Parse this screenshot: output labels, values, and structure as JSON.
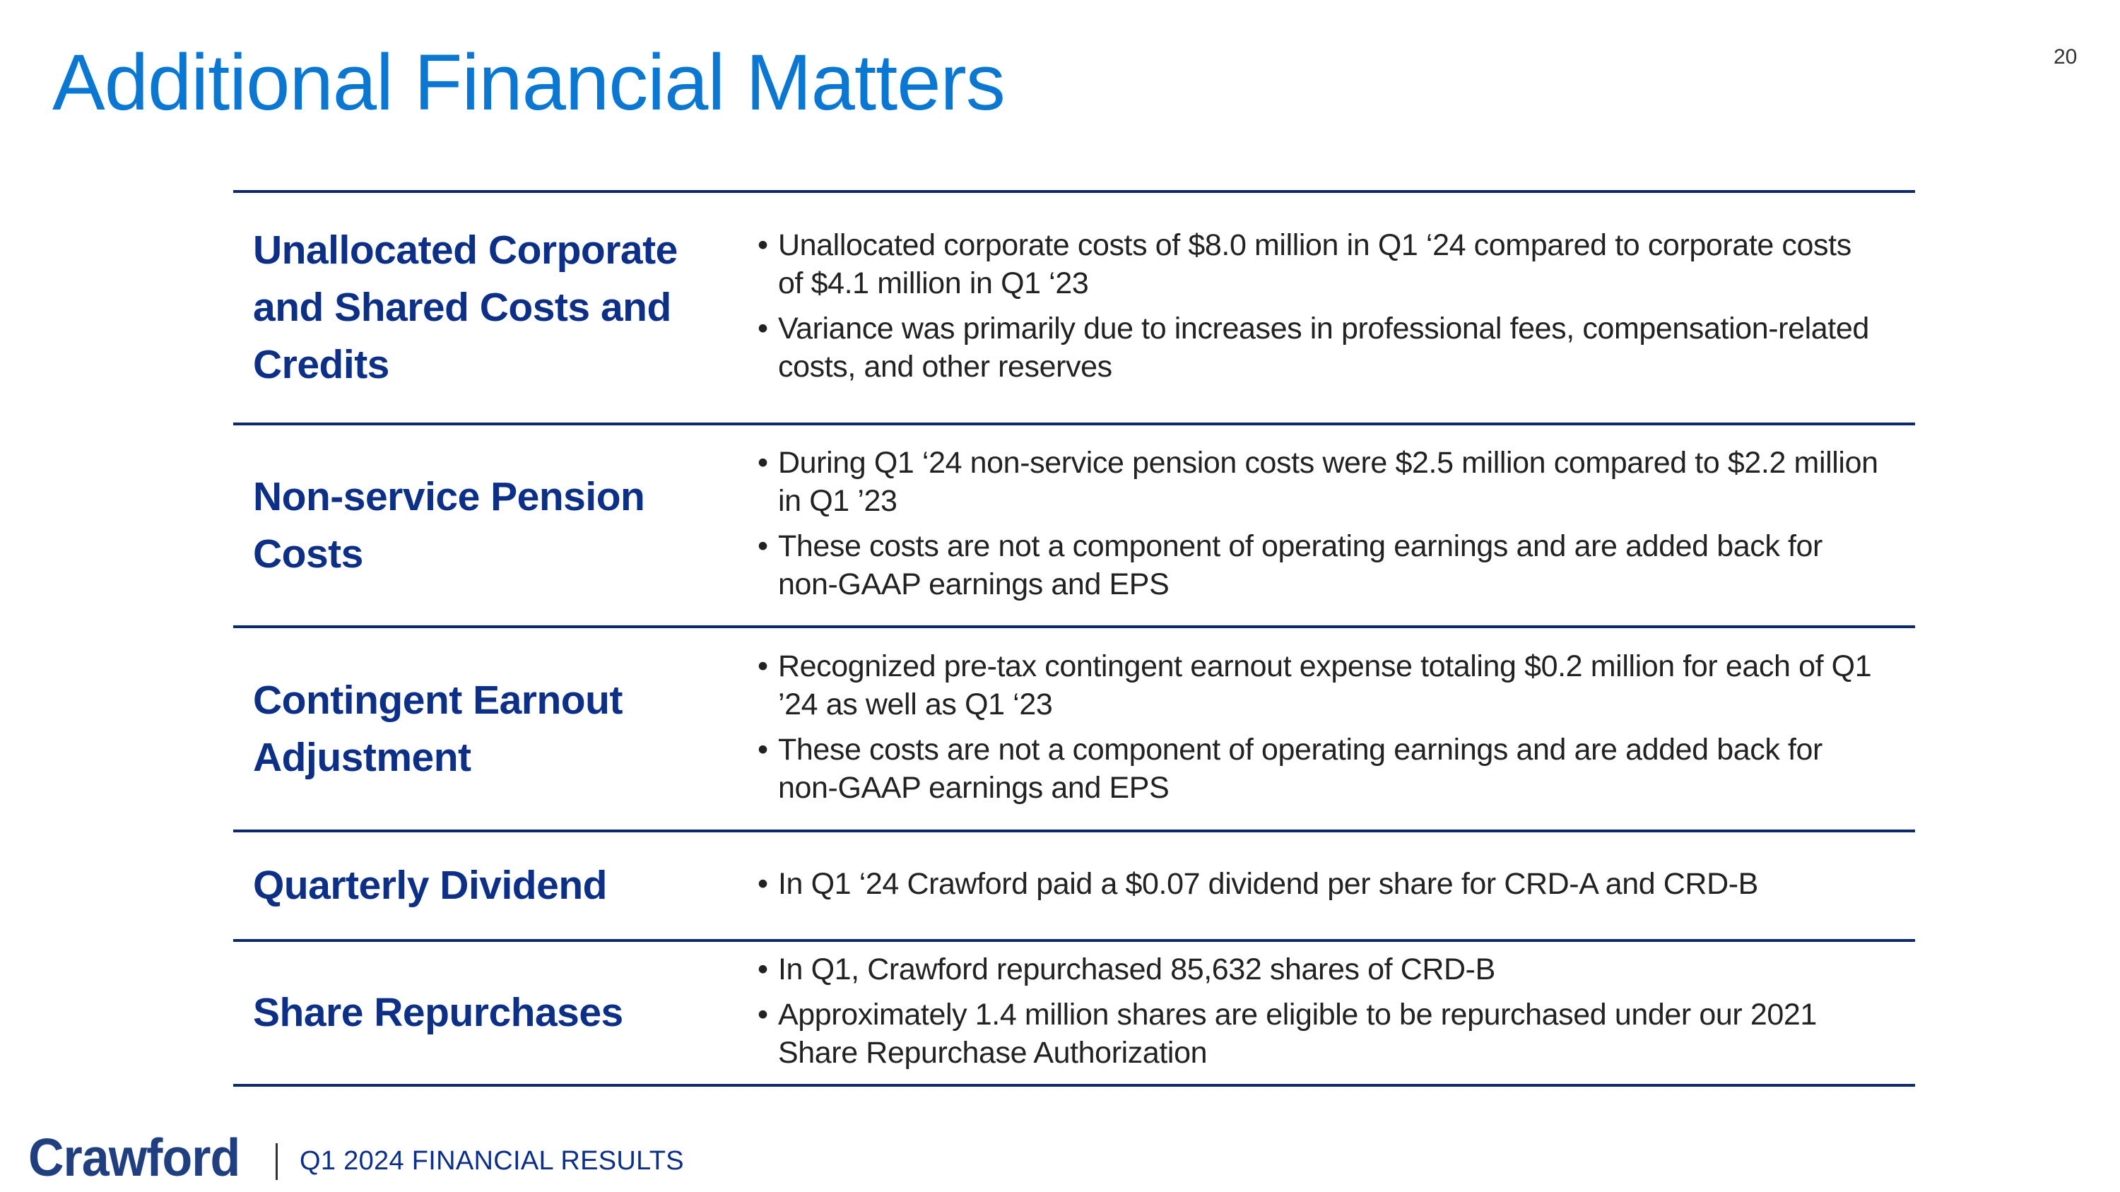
{
  "title": "Additional Financial Matters",
  "page_number": "20",
  "colors": {
    "title": "#0a78d2",
    "heading": "#0c2f87",
    "rule": "#0c2a6b"
  },
  "rows": [
    {
      "heading": "Unallocated Corporate and Shared Costs and Credits",
      "bullets": [
        "Unallocated corporate costs of $8.0 million in Q1 ‘24 compared to corporate costs of $4.1 million in Q1 ‘23",
        "Variance was primarily due to increases in professional fees, compensation-related costs, and other reserves"
      ]
    },
    {
      "heading": "Non-service Pension Costs",
      "bullets": [
        "During Q1 ‘24 non-service pension costs were $2.5 million compared to $2.2 million in Q1 ’23",
        "These costs are not a component of operating earnings and are added back for non-GAAP earnings and EPS"
      ]
    },
    {
      "heading": "Contingent Earnout Adjustment",
      "bullets": [
        "Recognized pre-tax contingent earnout expense totaling $0.2 million for each of Q1 ’24 as well as Q1 ‘23",
        "These costs are not a component of operating earnings and are added back for non-GAAP earnings and EPS"
      ]
    },
    {
      "heading": "Quarterly Dividend",
      "bullets": [
        "In Q1 ‘24 Crawford paid a $0.07 dividend per share for CRD-A and CRD-B"
      ]
    },
    {
      "heading": "Share Repurchases",
      "bullets": [
        "In Q1, Crawford repurchased 85,632 shares of CRD-B",
        "Approximately 1.4 million shares are eligible to be repurchased under our 2021 Share Repurchase Authorization"
      ]
    }
  ],
  "footer": {
    "logo": "Crawford",
    "subtitle": "Q1 2024 FINANCIAL RESULTS"
  }
}
